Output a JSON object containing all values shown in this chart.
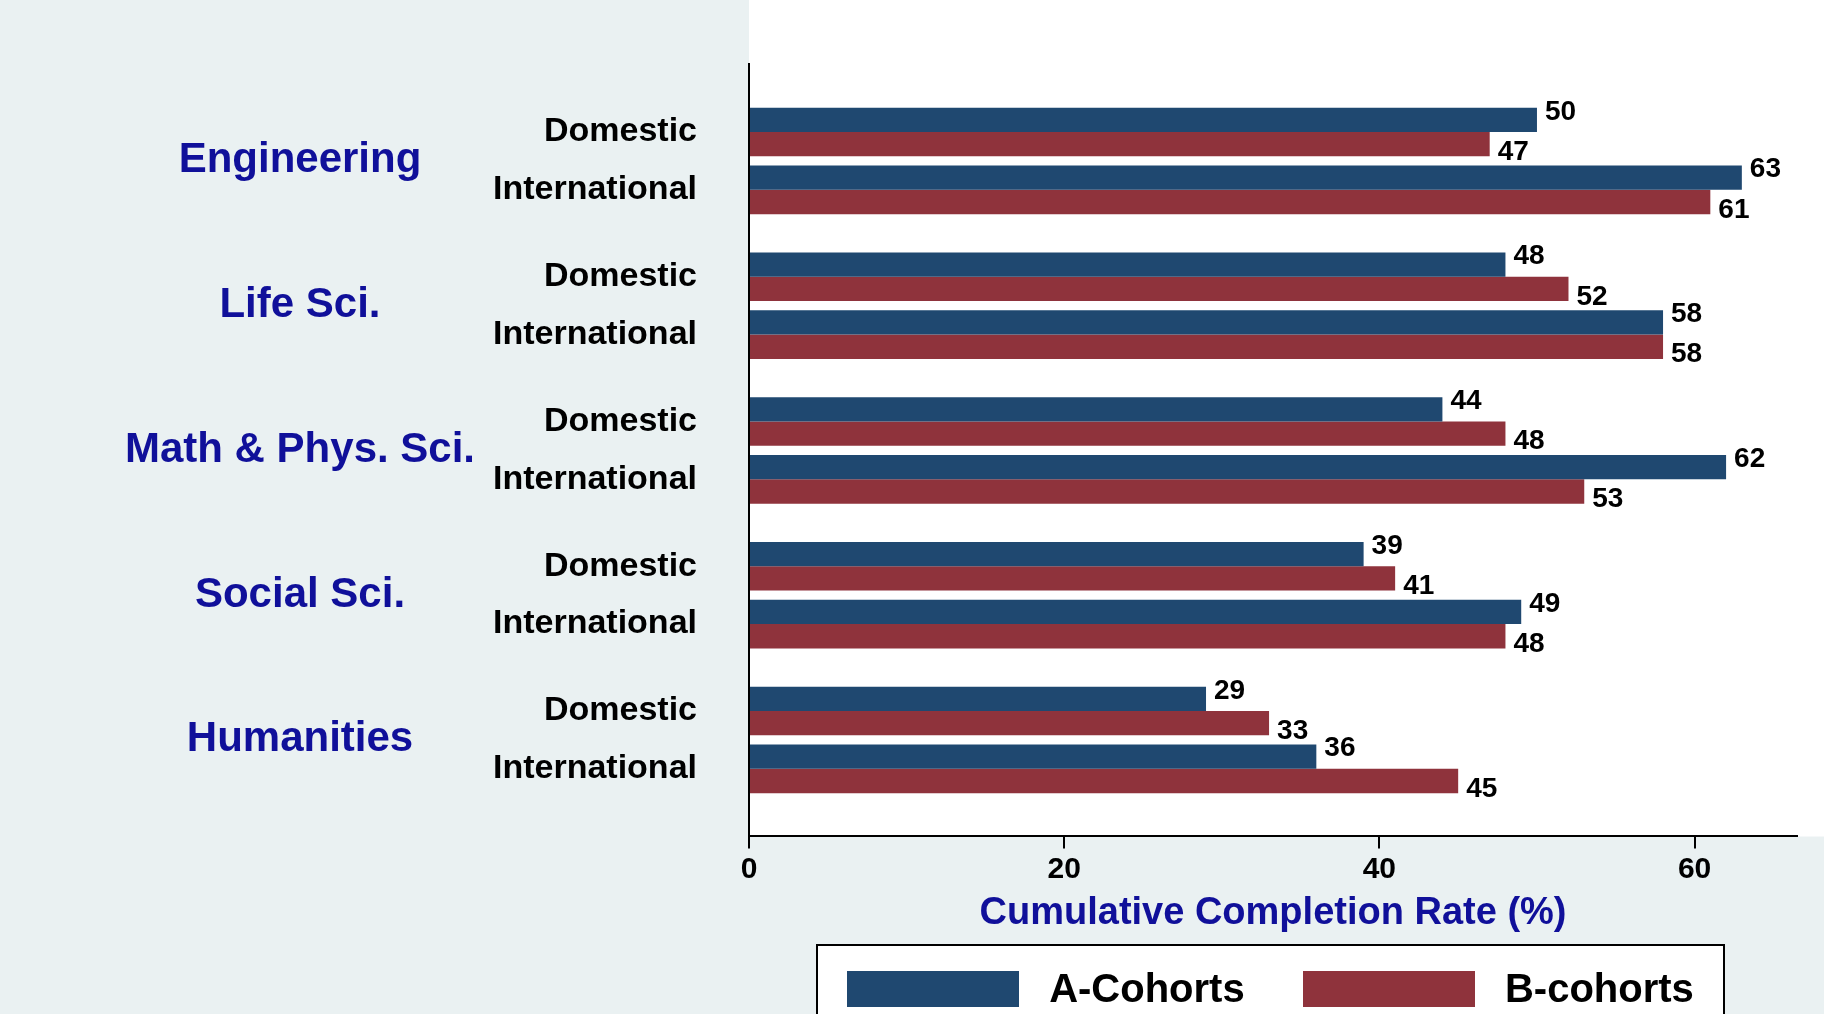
{
  "chart_data": {
    "type": "bar",
    "orientation": "horizontal",
    "categories": [
      "Domestic",
      "International",
      "Domestic",
      "International",
      "Domestic",
      "International",
      "Domestic",
      "International",
      "Domestic",
      "International"
    ],
    "annotations": [
      "Engineering",
      "Life Sci.",
      "Math & Phys. Sci.",
      "Social Sci.",
      "Humanities"
    ],
    "series": [
      {
        "name": "A-Cohorts",
        "color": "#1f4870",
        "values": [
          50,
          63,
          48,
          58,
          44,
          62,
          39,
          49,
          29,
          36
        ]
      },
      {
        "name": "B-cohorts",
        "color": "#8f333c",
        "values": [
          47,
          61,
          52,
          58,
          48,
          53,
          41,
          48,
          33,
          45
        ]
      }
    ],
    "xlabel": "Cumulative Completion Rate (%)",
    "xlim": [
      0,
      66.5
    ],
    "xticks": [
      0,
      20,
      40,
      60
    ],
    "data_labels": true,
    "legend": "bottom",
    "grid": false
  }
}
